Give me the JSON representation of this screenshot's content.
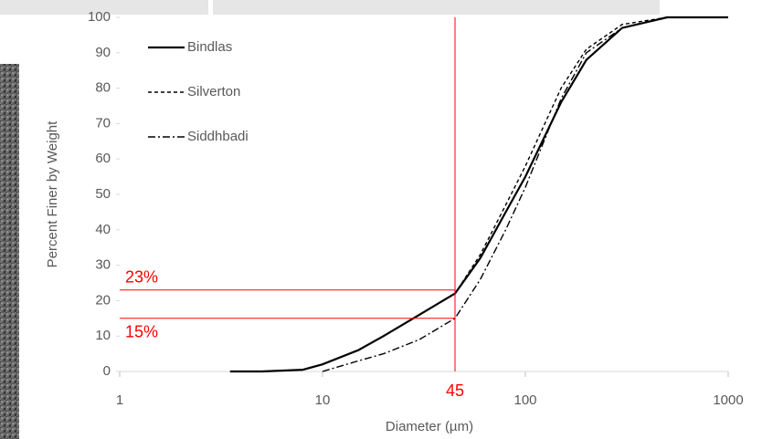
{
  "chart_data": {
    "type": "line",
    "x_label": "Diameter (µm)",
    "y_label": "Percent Finer by Weight",
    "x": [
      3.5,
      5,
      8,
      10,
      15,
      20,
      30,
      45,
      60,
      80,
      100,
      150,
      200,
      300,
      500,
      1000
    ],
    "series": [
      {
        "name": "Bindlas",
        "color": "#000000",
        "dash": "solid",
        "values": [
          0,
          0,
          0.5,
          2,
          6,
          10,
          16,
          22,
          32,
          45,
          55,
          76,
          88,
          97,
          100,
          100
        ]
      },
      {
        "name": "Silverton",
        "color": "#000000",
        "dash": "dashed",
        "values": [
          0,
          0,
          0.5,
          2,
          6,
          10,
          16,
          22,
          33,
          47,
          58,
          80,
          91,
          98,
          100,
          100
        ]
      },
      {
        "name": "Siddhbadi",
        "color": "#000000",
        "dash": "dashdot",
        "values": [
          null,
          null,
          null,
          0,
          3,
          5,
          9,
          15,
          26,
          40,
          52,
          77,
          90,
          97,
          100,
          100
        ]
      }
    ],
    "xlim": [
      1,
      1000
    ],
    "xticks": [
      1,
      10,
      100,
      1000
    ],
    "log_x": true,
    "ylim": [
      0,
      100
    ],
    "yticks": [
      0,
      10,
      20,
      30,
      40,
      50,
      60,
      70,
      80,
      90,
      100
    ],
    "grid": false,
    "legend": "upper-left",
    "annotations": {
      "color": "#ff0000",
      "hlines": [
        {
          "value": 23,
          "label": "23%"
        },
        {
          "value": 15,
          "label": "15%"
        }
      ],
      "vline": {
        "value": 45,
        "label": "45"
      }
    }
  }
}
